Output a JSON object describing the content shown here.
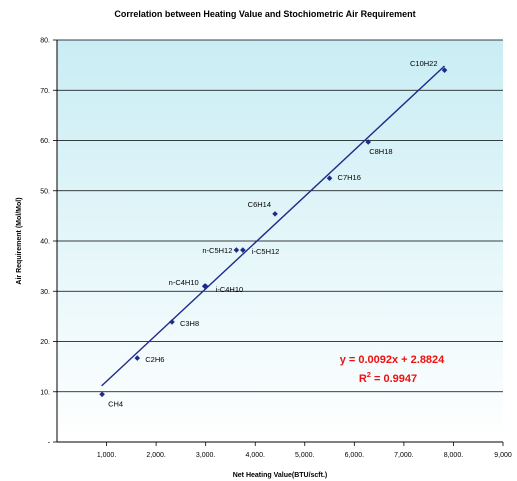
{
  "chart_data": {
    "type": "scatter",
    "title": "Correlation between Heating Value and Stochiometric Air Requirement",
    "xlabel": "Net Heating Value(BTU/scft.)",
    "ylabel": "Air Requirement (Mol/Mol)",
    "xlim": [
      0,
      9000
    ],
    "ylim": [
      0,
      80
    ],
    "x_ticks": [
      1000,
      2000,
      3000,
      4000,
      5000,
      6000,
      7000,
      8000,
      9000
    ],
    "x_tick_labels": [
      "1,000.",
      "2,000.",
      "3,000.",
      "4,000.",
      "5,000.",
      "6,000.",
      "7,000.",
      "8,000.",
      "9,000"
    ],
    "y_ticks": [
      0,
      10,
      20,
      30,
      40,
      50,
      60,
      70,
      80
    ],
    "y_tick_labels": [
      "-",
      "10.",
      "20.",
      "30.",
      "40.",
      "50.",
      "60.",
      "70.",
      "80."
    ],
    "grid": "horizontal",
    "points": [
      {
        "label": "CH4",
        "x": 910,
        "y": 9.5
      },
      {
        "label": "C2H6",
        "x": 1620,
        "y": 16.7
      },
      {
        "label": "C3H8",
        "x": 2320,
        "y": 23.9
      },
      {
        "label": "n-C4H10",
        "x": 2980,
        "y": 31.0
      },
      {
        "label": "i-C4H10",
        "x": 3000,
        "y": 31.0
      },
      {
        "label": "n-C5H12",
        "x": 3620,
        "y": 38.2
      },
      {
        "label": "i-C5H12",
        "x": 3750,
        "y": 38.2
      },
      {
        "label": "C6H14",
        "x": 4400,
        "y": 45.4
      },
      {
        "label": "C7H16",
        "x": 5500,
        "y": 52.5
      },
      {
        "label": "C8H18",
        "x": 6280,
        "y": 59.7
      },
      {
        "label": "C10H22",
        "x": 7820,
        "y": 74.0
      }
    ],
    "trendline": {
      "slope": 0.0092,
      "intercept": 2.8824,
      "x_range": [
        900,
        7820
      ],
      "equation": "y = 0.0092x + 2.8824",
      "r2_prefix": "R",
      "r2_exp": "2",
      "r2_value": " = 0.9947"
    },
    "colors": {
      "plot_top": "#c9edf4",
      "plot_bottom": "#ffffff",
      "marker": "#1f2a8a",
      "trendline": "#1f2a8a",
      "equation": "#ee1111"
    }
  }
}
